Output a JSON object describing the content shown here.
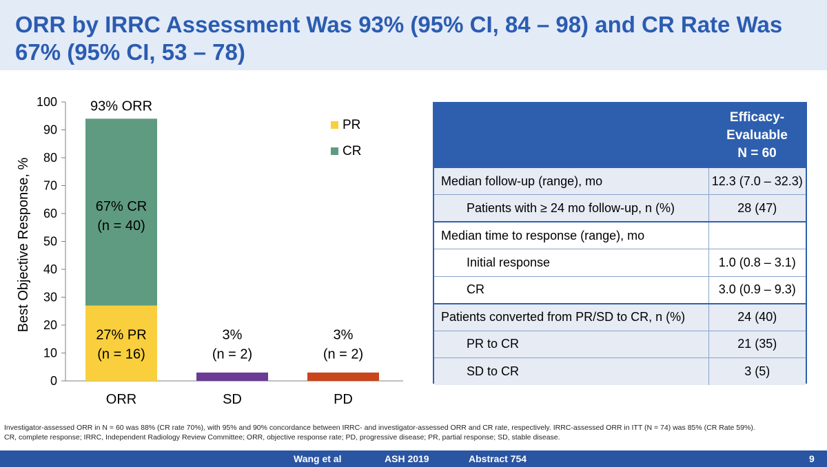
{
  "slide": {
    "title": "ORR by IRRC Assessment Was 93% (95% CI, 84 – 98) and CR Rate Was 67% (95% CI, 53 – 78)",
    "footnote_line1": "Investigator-assessed ORR in N = 60 was 88% (CR rate 70%), with 95% and 90% concordance between IRRC- and investigator-assessed ORR and CR rate, respectively. IRRC-assessed ORR in ITT (N = 74) was 85% (CR Rate 59%).",
    "footnote_line2": "CR, complete response; IRRC, Independent Radiology Review Committee; ORR, objective response rate; PD, progressive disease; PR, partial response; SD, stable disease.",
    "footer": {
      "authors": "Wang et al",
      "meeting": "ASH 2019",
      "abstract": "Abstract 754",
      "page": "9"
    }
  },
  "chart_data": {
    "type": "bar",
    "stacked": true,
    "ylabel": "Best Objective Response, %",
    "ylim": [
      0,
      100
    ],
    "yticks": [
      0,
      10,
      20,
      30,
      40,
      50,
      60,
      70,
      80,
      90,
      100
    ],
    "categories": [
      "ORR",
      "SD",
      "PD"
    ],
    "series": [
      {
        "name": "PR",
        "color": "#f9cf3d",
        "values": [
          27,
          0,
          0
        ]
      },
      {
        "name": "CR",
        "color": "#5f9b81",
        "values": [
          67,
          0,
          0
        ]
      },
      {
        "name": "SD",
        "color": "#6a3c93",
        "values": [
          0,
          3,
          0
        ]
      },
      {
        "name": "PD",
        "color": "#c9451d",
        "values": [
          0,
          0,
          3
        ]
      }
    ],
    "legend": [
      {
        "name": "PR",
        "color": "#f9cf3d"
      },
      {
        "name": "CR",
        "color": "#5f9b81"
      }
    ],
    "legend_position": "top-right",
    "top_labels": [
      "93% ORR"
    ],
    "data_labels": [
      {
        "category": "ORR",
        "lines": [
          "67% CR",
          "(n = 40)"
        ],
        "value": 60
      },
      {
        "category": "ORR",
        "lines": [
          "27% PR",
          "(n = 16)"
        ],
        "value": 14
      },
      {
        "category": "SD",
        "lines": [
          "3%",
          "(n = 2)"
        ],
        "value": 14
      },
      {
        "category": "PD",
        "lines": [
          "3%",
          "(n = 2)"
        ],
        "value": 14
      }
    ]
  },
  "table": {
    "header": [
      "Efficacy-",
      "Evaluable",
      "N = 60"
    ],
    "rows": [
      {
        "label": "Median follow-up (range), mo",
        "value": "12.3 (7.0 – 32.3)"
      },
      {
        "label": "Patients with ≥ 24 mo follow-up, n (%)",
        "value": "28 (47)"
      },
      {
        "label": "Median time to response (range), mo",
        "value": ""
      },
      {
        "label": "Initial response",
        "value": "1.0 (0.8 – 3.1)"
      },
      {
        "label": "CR",
        "value": "3.0 (0.9 – 9.3)"
      },
      {
        "label": "Patients converted from PR/SD to CR, n (%)",
        "value": "24 (40)"
      },
      {
        "label": "PR to CR",
        "value": "21 (35)"
      },
      {
        "label": "SD to CR",
        "value": "3 (5)"
      }
    ]
  }
}
